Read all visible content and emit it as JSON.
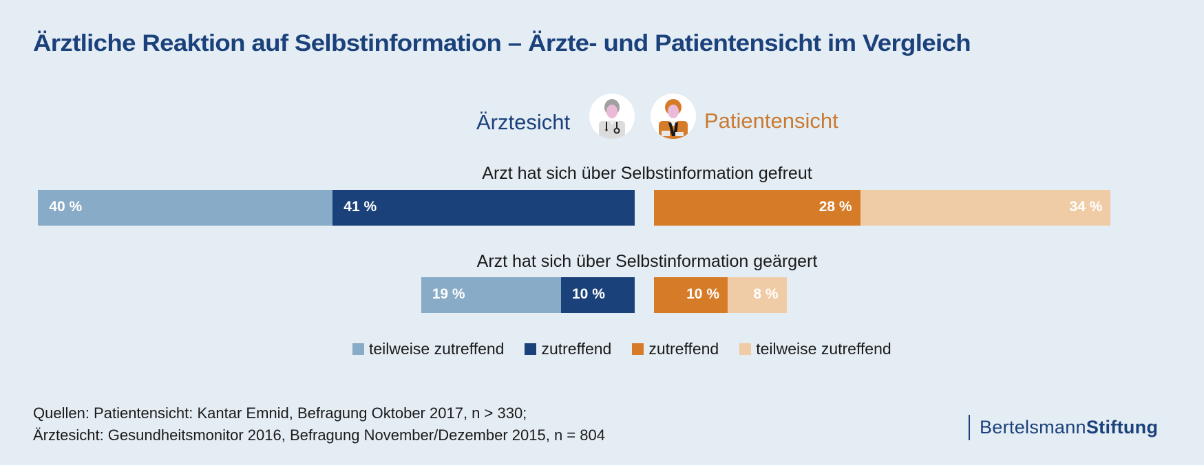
{
  "title": "Ärztliche Reaktion auf Selbstinformation – Ärzte- und Patientensicht im Vergleich",
  "views": {
    "doctor": {
      "label": "Ärztesicht",
      "icon": "doctor-avatar-icon"
    },
    "patient": {
      "label": "Patientensicht",
      "icon": "patient-avatar-icon"
    }
  },
  "colors": {
    "background": "#e4ecf4",
    "title": "#1b417b",
    "doctor_partial": "#88abc7",
    "doctor_full": "#1b417b",
    "patient_full": "#d67b27",
    "patient_partial": "#f0cca6",
    "patient_text": "#c97a30"
  },
  "chart_data": {
    "type": "bar",
    "orientation": "horizontal-diverging",
    "title": "Ärztliche Reaktion auf Selbstinformation – Ärzte- und Patientensicht im Vergleich",
    "unit": "%",
    "categories": [
      "Arzt hat sich über Selbstinformation gefreut",
      "Arzt hat sich über Selbstinformation geärgert"
    ],
    "series": [
      {
        "name": "teilweise zutreffend",
        "group": "Ärztesicht",
        "values": [
          40,
          19
        ],
        "labels": [
          "40 %",
          "19 %"
        ]
      },
      {
        "name": "zutreffend",
        "group": "Ärztesicht",
        "values": [
          41,
          10
        ],
        "labels": [
          "41 %",
          "10 %"
        ]
      },
      {
        "name": "zutreffend",
        "group": "Patientensicht",
        "values": [
          28,
          10
        ],
        "labels": [
          "28 %",
          "10 %"
        ]
      },
      {
        "name": "teilweise zutreffend",
        "group": "Patientensicht",
        "values": [
          34,
          8
        ],
        "labels": [
          "34 %",
          "8 %"
        ]
      }
    ],
    "legend": {
      "position": "bottom-center",
      "items": [
        {
          "label": "teilweise zutreffend",
          "series": 0
        },
        {
          "label": "zutreffend",
          "series": 1
        },
        {
          "label": "zutreffend",
          "series": 2
        },
        {
          "label": "teilweise zutreffend",
          "series": 3
        }
      ]
    },
    "xlabel": "",
    "ylabel": "",
    "grid": false
  },
  "source": {
    "line1": "Quellen: Patientensicht: Kantar Emnid, Befragung Oktober 2017, n > 330;",
    "line2": "Ärztesicht: Gesundheitsmonitor 2016, Befragung November/Dezember 2015, n = 804"
  },
  "logo": {
    "part1": "Bertelsmann",
    "part2": "Stiftung"
  }
}
